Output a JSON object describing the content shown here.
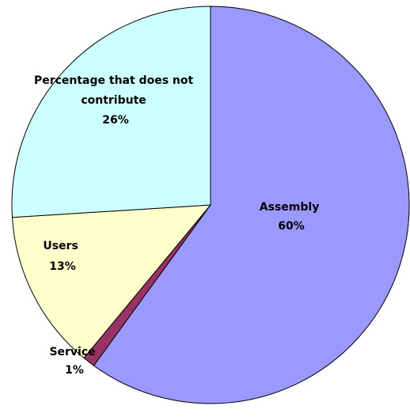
{
  "chart_data": {
    "type": "pie",
    "start_angle_deg": 0,
    "direction": "clockwise",
    "slices": [
      {
        "label": "Assembly",
        "value": 60,
        "value_label": "60%",
        "color": "#9999FF"
      },
      {
        "label": "Service",
        "value": 1,
        "value_label": "1%",
        "color": "#993366"
      },
      {
        "label": "Users",
        "value": 13,
        "value_label": "13%",
        "color": "#FFFFCC"
      },
      {
        "label": "Percentage that does not contribute",
        "value": 26,
        "value_label": "26%",
        "color": "#CCFFFF"
      }
    ],
    "slice_labels": [
      {
        "lines": [
          "Assembly",
          "60%"
        ]
      },
      {
        "lines": [
          "Service",
          "1%"
        ]
      },
      {
        "lines": [
          "Users",
          "13%"
        ]
      },
      {
        "lines": [
          "Percentage that does not",
          "contribute",
          "26%"
        ]
      }
    ],
    "title": "",
    "legend": "none"
  }
}
